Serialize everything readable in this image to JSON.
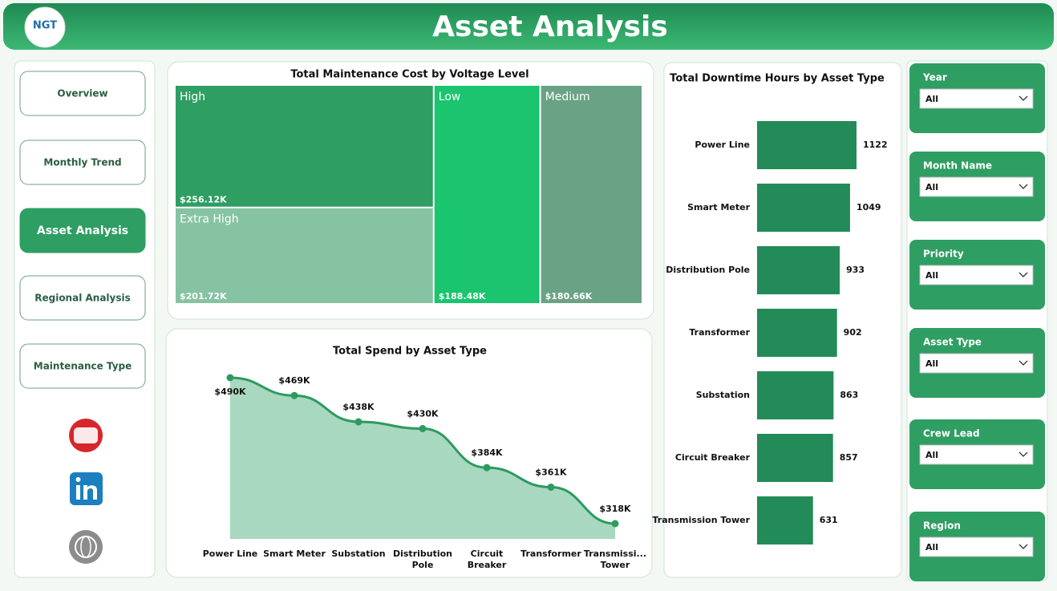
{
  "header": {
    "title": "Asset Analysis",
    "logo": "NGT"
  },
  "nav": {
    "items": [
      "Overview",
      "Monthly Trend",
      "Asset Analysis",
      "Regional Analysis",
      "Maintenance Type"
    ],
    "active_index": 2
  },
  "filters": [
    {
      "label": "Year",
      "value": "All"
    },
    {
      "label": "Month Name",
      "value": "All"
    },
    {
      "label": "Priority",
      "value": "All"
    },
    {
      "label": "Asset Type",
      "value": "All"
    },
    {
      "label": "Crew Lead",
      "value": "All"
    },
    {
      "label": "Region",
      "value": "All"
    }
  ],
  "chart_data": [
    {
      "type": "treemap",
      "title": "Total Maintenance Cost by Voltage Level",
      "categories": [
        "High",
        "Extra High",
        "Low",
        "Medium"
      ],
      "values": [
        256.12,
        201.72,
        188.48,
        180.66
      ],
      "value_labels": [
        "$256.12K",
        "$201.72K",
        "$188.48K",
        "$180.66K"
      ],
      "colors": [
        "#2e9e62",
        "#86c3a3",
        "#1bc46e",
        "#6aa285"
      ]
    },
    {
      "type": "area",
      "title": "Total Spend by Asset Type",
      "categories": [
        "Power Line",
        "Smart Meter",
        "Substation",
        "Distribution Pole",
        "Circuit Breaker",
        "Transformer",
        "Transmissi... Tower"
      ],
      "values": [
        490,
        469,
        438,
        430,
        384,
        361,
        318
      ],
      "value_labels": [
        "$490K",
        "$469K",
        "$438K",
        "$430K",
        "$384K",
        "$361K",
        "$318K"
      ],
      "color": "#2e9a60",
      "fill": "#a8d8bf"
    },
    {
      "type": "hbar",
      "title": "Total Downtime Hours by Asset Type",
      "categories": [
        "Power Line",
        "Smart Meter",
        "Distribution Pole",
        "Transformer",
        "Substation",
        "Circuit Breaker",
        "Transmission Tower"
      ],
      "values": [
        1122,
        1049,
        933,
        902,
        863,
        857,
        631
      ],
      "color": "#228b57"
    }
  ]
}
